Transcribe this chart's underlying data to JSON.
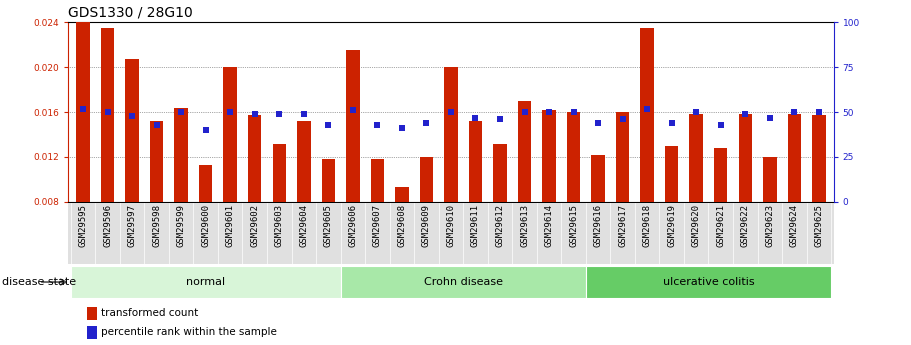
{
  "title": "GDS1330 / 28G10",
  "samples": [
    "GSM29595",
    "GSM29596",
    "GSM29597",
    "GSM29598",
    "GSM29599",
    "GSM29600",
    "GSM29601",
    "GSM29602",
    "GSM29603",
    "GSM29604",
    "GSM29605",
    "GSM29606",
    "GSM29607",
    "GSM29608",
    "GSM29609",
    "GSM29610",
    "GSM29611",
    "GSM29612",
    "GSM29613",
    "GSM29614",
    "GSM29615",
    "GSM29616",
    "GSM29617",
    "GSM29618",
    "GSM29619",
    "GSM29620",
    "GSM29621",
    "GSM29622",
    "GSM29623",
    "GSM29624",
    "GSM29625"
  ],
  "transformed_count": [
    0.024,
    0.0235,
    0.0207,
    0.0152,
    0.0164,
    0.0113,
    0.02,
    0.0157,
    0.0132,
    0.0152,
    0.0118,
    0.0215,
    0.0118,
    0.0093,
    0.012,
    0.02,
    0.0152,
    0.0132,
    0.017,
    0.0162,
    0.016,
    0.0122,
    0.016,
    0.0235,
    0.013,
    0.0158,
    0.0128,
    0.0158,
    0.012,
    0.0158,
    0.0157
  ],
  "percentile_rank": [
    52,
    50,
    48,
    43,
    50,
    40,
    50,
    49,
    49,
    49,
    43,
    51,
    43,
    41,
    44,
    50,
    47,
    46,
    50,
    50,
    50,
    44,
    46,
    52,
    44,
    50,
    43,
    49,
    47,
    50,
    50
  ],
  "group_boundaries": [
    {
      "name": "normal",
      "start": 0,
      "end": 11,
      "color": "#d8f5d8"
    },
    {
      "name": "Crohn disease",
      "start": 11,
      "end": 21,
      "color": "#a8e8a8"
    },
    {
      "name": "ulcerative colitis",
      "start": 21,
      "end": 31,
      "color": "#66cc66"
    }
  ],
  "bar_color": "#cc2200",
  "dot_color": "#2222cc",
  "ylim_left": [
    0.008,
    0.024
  ],
  "ylim_right": [
    0,
    100
  ],
  "yticks_left": [
    0.008,
    0.012,
    0.016,
    0.02,
    0.024
  ],
  "yticks_right": [
    0,
    25,
    50,
    75,
    100
  ],
  "grid_color": "#555555",
  "bg_color": "#ffffff",
  "disease_state_label": "disease state",
  "legend_bar_label": "transformed count",
  "legend_dot_label": "percentile rank within the sample",
  "title_fontsize": 10,
  "tick_fontsize": 6.5,
  "label_fontsize": 8
}
